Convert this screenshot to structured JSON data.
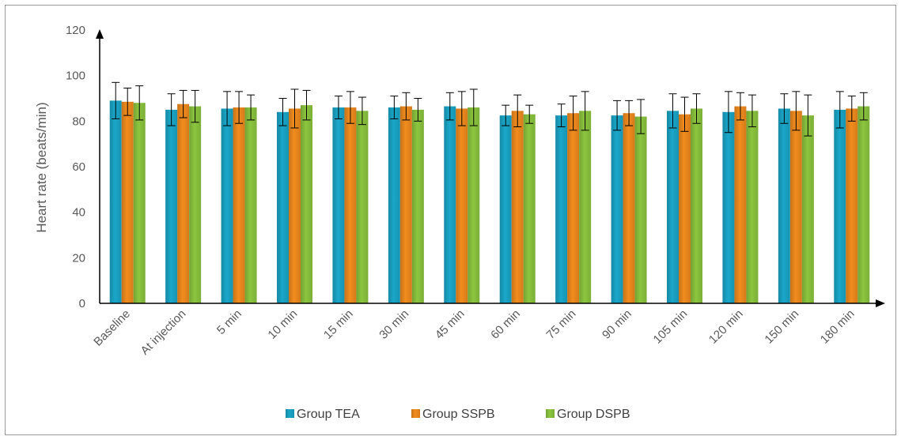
{
  "chart_data": {
    "type": "bar",
    "title": "",
    "xlabel": "",
    "ylabel": "Heart rate (beats/min)",
    "ylim": [
      0,
      120
    ],
    "yticks": [
      "0",
      "20",
      "40",
      "60",
      "80",
      "100",
      "120"
    ],
    "grid": false,
    "legend_position": "bottom",
    "categories": [
      "Baseline",
      "At injection",
      "5 min",
      "10 min",
      "15 min",
      "30 min",
      "45 min",
      "60 min",
      "75 min",
      "90 min",
      "105 min",
      "120 min",
      "150 min",
      "180 min"
    ],
    "series": [
      {
        "name": "Group TEA",
        "color": "#1aa7c9",
        "values": [
          89,
          85,
          85.5,
          84,
          86,
          86,
          86.5,
          82.5,
          82.5,
          82.5,
          84.5,
          84,
          85.5,
          85
        ],
        "errors": [
          8,
          7,
          7.5,
          6,
          5,
          5,
          6,
          4.5,
          5,
          6.5,
          7.5,
          9,
          6.5,
          8
        ]
      },
      {
        "name": "Group SSPB",
        "color": "#f28c1e",
        "values": [
          88.5,
          87.5,
          86,
          85.5,
          86,
          86.5,
          85.5,
          84.5,
          83.5,
          83.5,
          83,
          86.5,
          84.5,
          85.5
        ],
        "errors": [
          6,
          6,
          7,
          8.5,
          7,
          6,
          7.5,
          7,
          7.5,
          5.5,
          7.5,
          6,
          8.5,
          5.5
        ]
      },
      {
        "name": "Group DSPB",
        "color": "#8cc63f",
        "values": [
          88,
          86.5,
          86,
          87,
          84.5,
          85,
          86,
          83,
          84.5,
          82,
          85.5,
          84.5,
          82.5,
          86.5
        ],
        "errors": [
          7.5,
          7,
          5.5,
          6.5,
          6,
          5,
          8,
          4,
          8.5,
          7.5,
          6.5,
          7,
          9,
          6
        ]
      }
    ]
  }
}
